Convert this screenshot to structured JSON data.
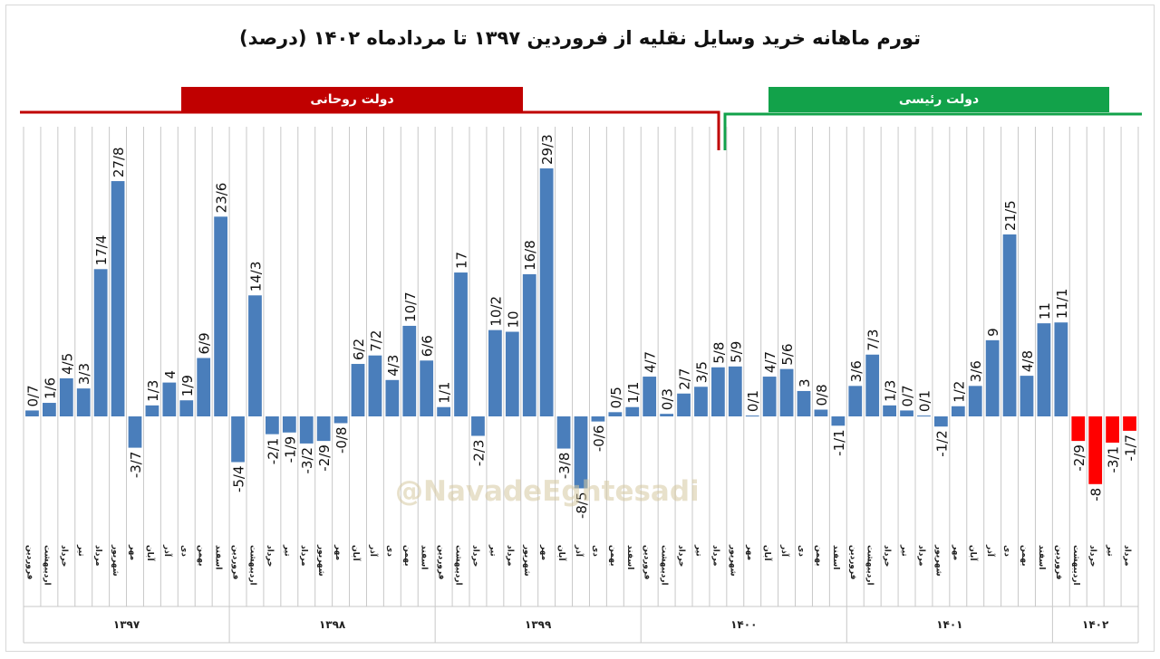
{
  "title": "تورم ماهانه خرید وسایل نقلیه از فروردین ۱۳۹۷ تا مردادماه ۱۴۰۲ (درصد)",
  "governments": [
    {
      "label": "دولت روحانی",
      "color": "#c00000"
    },
    {
      "label": "دولت رئیسی",
      "color": "#12a24a"
    }
  ],
  "watermark": "@NavadeEghtesadi",
  "colors": {
    "positive": "#4a7ebb",
    "negative": "#ff0000",
    "grid": "#c8c8c8"
  },
  "chart_data": {
    "type": "bar",
    "title": "تورم ماهانه خرید وسایل نقلیه از فروردین ۱۳۹۷ تا مردادماه ۱۴۰۲ (درصد)",
    "xlabel": "",
    "ylabel": "",
    "grid": true,
    "categories": [
      "فروردین",
      "اردیبهشت",
      "خرداد",
      "تیر",
      "مرداد",
      "شهریور",
      "مهر",
      "آبان",
      "آذر",
      "دی",
      "بهمن",
      "اسفند",
      "فروردین",
      "اردیبهشت",
      "خرداد",
      "تیر",
      "مرداد",
      "شهریور",
      "مهر",
      "آبان",
      "آذر",
      "دی",
      "بهمن",
      "اسفند",
      "فروردین",
      "اردیبهشت",
      "خرداد",
      "تیر",
      "مرداد",
      "شهریور",
      "مهر",
      "آبان",
      "آذر",
      "دی",
      "بهمن",
      "اسفند",
      "فروردین",
      "اردیبهشت",
      "خرداد",
      "تیر",
      "مرداد",
      "شهریور",
      "مهر",
      "آبان",
      "آذر",
      "دی",
      "بهمن",
      "اسفند",
      "فروردین",
      "اردیبهشت",
      "خرداد",
      "تیر",
      "مرداد",
      "شهریور",
      "مهر",
      "آبان",
      "آذر",
      "دی",
      "بهمن",
      "اسفند",
      "فروردین",
      "اردیبهشت",
      "خرداد",
      "تیر",
      "مرداد"
    ],
    "years": [
      {
        "label": "۱۳۹۷",
        "months": 12
      },
      {
        "label": "۱۳۹۸",
        "months": 12
      },
      {
        "label": "۱۳۹۹",
        "months": 12
      },
      {
        "label": "۱۴۰۰",
        "months": 12
      },
      {
        "label": "۱۴۰۱",
        "months": 12
      },
      {
        "label": "۱۴۰۲",
        "months": 5
      }
    ],
    "values": [
      0.7,
      1.6,
      4.5,
      3.3,
      17.4,
      27.8,
      -3.7,
      1.3,
      4,
      1.9,
      6.9,
      23.6,
      -5.4,
      14.3,
      -2.1,
      -1.9,
      -3.2,
      -2.9,
      -0.8,
      6.2,
      7.2,
      4.3,
      10.7,
      6.6,
      1.1,
      17,
      -2.3,
      10.2,
      10,
      16.8,
      29.3,
      -3.8,
      -8.5,
      -0.6,
      0.5,
      1.1,
      4.7,
      0.3,
      2.7,
      3.5,
      5.8,
      5.9,
      0.1,
      4.7,
      5.6,
      3,
      0.8,
      -1.1,
      3.6,
      7.3,
      1.3,
      0.7,
      0.1,
      -1.2,
      1.2,
      3.6,
      9,
      21.5,
      4.8,
      11,
      11.1,
      -2.9,
      -8,
      -3.1,
      -1.7
    ],
    "labels": [
      "0/7",
      "1/6",
      "4/5",
      "3/3",
      "17/4",
      "27/8",
      "-3/7",
      "1/3",
      "4",
      "1/9",
      "6/9",
      "23/6",
      "-5/4",
      "14/3",
      "-2/1",
      "-1/9",
      "-3/2",
      "-2/9",
      "-0/8",
      "6/2",
      "7/2",
      "4/3",
      "10/7",
      "6/6",
      "1/1",
      "17",
      "-2/3",
      "10/2",
      "10",
      "16/8",
      "29/3",
      "-3/8",
      "-8/5",
      "-0/6",
      "0/5",
      "1/1",
      "4/7",
      "0/3",
      "2/7",
      "3/5",
      "5/8",
      "5/9",
      "0/1",
      "4/7",
      "5/6",
      "3",
      "0/8",
      "-1/1",
      "3/6",
      "7/3",
      "1/3",
      "0/7",
      "0/1",
      "-1/2",
      "1/2",
      "3/6",
      "9",
      "21/5",
      "4/8",
      "11",
      "11/1",
      "-2/9",
      "-8",
      "-3/1",
      "-1/7"
    ]
  }
}
